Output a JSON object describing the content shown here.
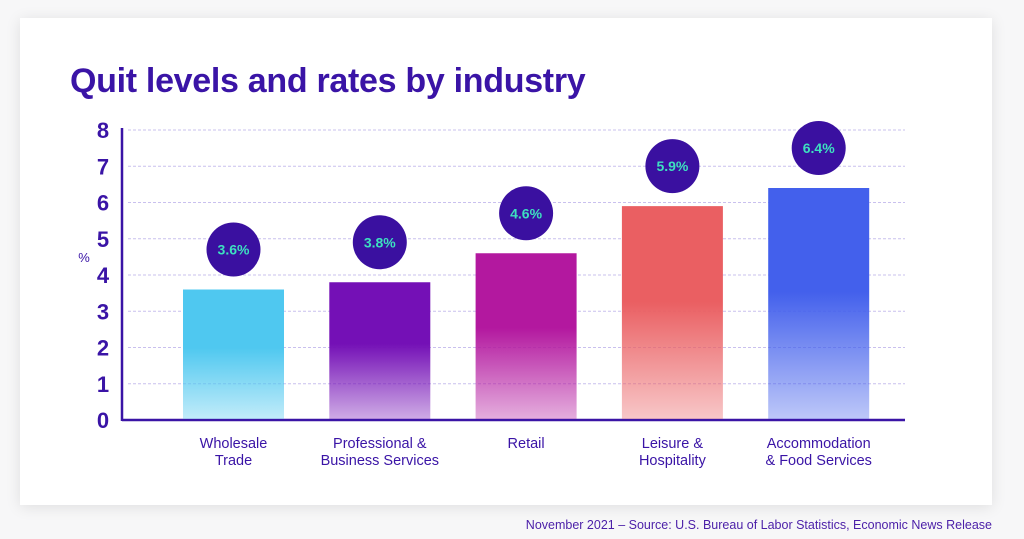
{
  "chart_data": {
    "type": "bar",
    "title": "Quit levels and rates by industry",
    "ylabel": "%",
    "xlabel": "",
    "ylim": [
      0,
      8
    ],
    "yticks": [
      "0",
      "1",
      "2",
      "3",
      "4",
      "5",
      "6",
      "7",
      "8"
    ],
    "grid": true,
    "categories": [
      [
        "Wholesale",
        "Trade"
      ],
      [
        "Professional &",
        "Business Services"
      ],
      [
        "Retail"
      ],
      [
        "Leisure &",
        "Hospitality"
      ],
      [
        "Accommodation",
        "& Food Services"
      ]
    ],
    "values": [
      3.6,
      3.8,
      4.6,
      5.9,
      6.4
    ],
    "data_labels": [
      "3.6%",
      "3.8%",
      "4.6%",
      "5.9%",
      "6.4%"
    ],
    "colors": [
      "#4fc8f0",
      "#7410b6",
      "#b3189f",
      "#ea5f62",
      "#4360ec"
    ],
    "label_bubble_color": "#3a10a0",
    "label_text_color": "#3de0c0",
    "axis_color": "#3a14a6"
  },
  "footer": {
    "source": "November 2021 – Source: U.S. Bureau of Labor Statistics, Economic News Release"
  }
}
